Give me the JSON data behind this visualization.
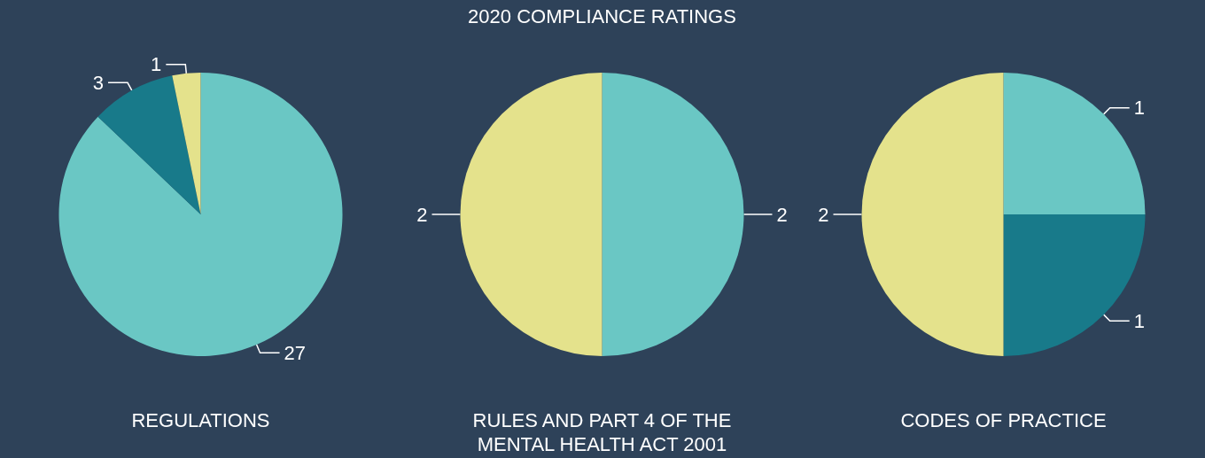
{
  "chart_data": [
    {
      "type": "pie",
      "xlabel": "REGULATIONS",
      "categories": [
        null,
        null,
        null
      ],
      "values": [
        27,
        3,
        1
      ],
      "colors": [
        "#6ac7c4",
        "#187a8a",
        "#e4e28c"
      ],
      "data_labels": true
    },
    {
      "type": "pie",
      "title": "2020 COMPLIANCE RATINGS",
      "xlabel": "RULES AND PART 4 OF THE\nMENTAL HEALTH ACT 2001",
      "categories": [
        null,
        null
      ],
      "values": [
        2,
        2
      ],
      "colors": [
        "#6ac7c4",
        "#e4e28c"
      ],
      "data_labels": true
    },
    {
      "type": "pie",
      "xlabel": "CODES OF PRACTICE",
      "categories": [
        null,
        null,
        null
      ],
      "values": [
        1,
        1,
        2
      ],
      "colors": [
        "#6ac7c4",
        "#187a8a",
        "#e4e28c"
      ],
      "data_labels": true
    }
  ]
}
